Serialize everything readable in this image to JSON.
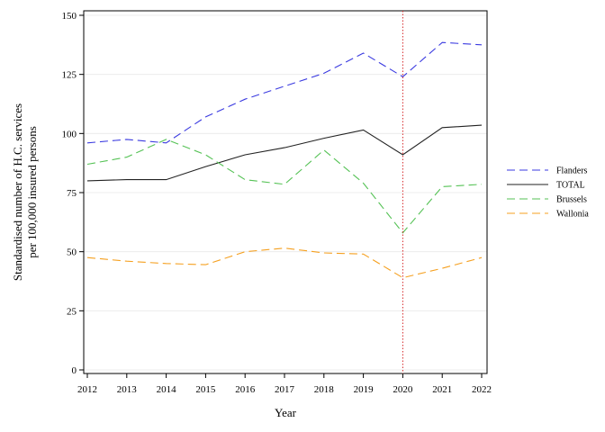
{
  "chart_data": {
    "type": "line",
    "title": "",
    "xlabel": "Year",
    "ylabel_line1": "Standardised number of H.C. services",
    "ylabel_line2": "per 100,000 insured persons",
    "x": [
      2012,
      2013,
      2014,
      2015,
      2016,
      2017,
      2018,
      2019,
      2020,
      2021,
      2022
    ],
    "xlim": [
      2012,
      2022
    ],
    "ylim": [
      0,
      150
    ],
    "yticks": [
      0,
      25,
      50,
      75,
      100,
      125,
      150
    ],
    "grid": "horizontal",
    "legend_position": "right",
    "reference_line": {
      "x": 2020,
      "color": "#d62728",
      "style": "dotted"
    },
    "series": [
      {
        "name": "Flanders",
        "color": "#3a3ae0",
        "dash": "dashed",
        "values": [
          96,
          97.5,
          96,
          107,
          114.5,
          120,
          125.5,
          134,
          124,
          138.5,
          137.5
        ]
      },
      {
        "name": "TOTAL",
        "color": "#222222",
        "dash": "solid",
        "values": [
          80,
          80.5,
          80.5,
          86,
          91,
          94,
          98,
          101.5,
          91,
          102.5,
          103.5
        ]
      },
      {
        "name": "Brussels",
        "color": "#55c255",
        "dash": "dashed",
        "values": [
          87,
          90,
          97.5,
          91,
          80.5,
          78.5,
          93,
          79,
          58,
          77.5,
          78.5
        ]
      },
      {
        "name": "Wallonia",
        "color": "#f5a020",
        "dash": "dashed",
        "values": [
          47.5,
          46,
          45,
          44.5,
          50,
          51.5,
          49.5,
          49,
          39,
          43,
          47.5
        ]
      }
    ]
  }
}
